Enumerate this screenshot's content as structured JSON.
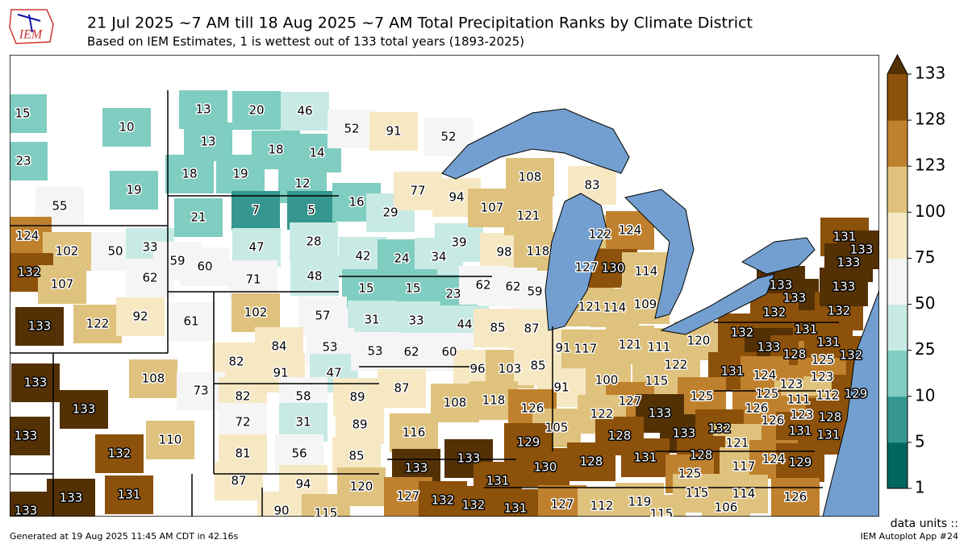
{
  "logo": "IEM",
  "header": {
    "title": "21 Jul 2025 ~7 AM till 18 Aug 2025 ~7 AM Total Precipitation Ranks by Climate District",
    "subtitle": "Based on IEM Estimates, 1 is wettest out of 133 total years (1893-2025)"
  },
  "footer": {
    "generated": "Generated at 19 Aug 2025 11:45 AM CDT in 42.16s",
    "units": "data units ::",
    "app": "IEM Autoplot App #24"
  },
  "colorbar": {
    "ticks": [
      1,
      5,
      10,
      25,
      50,
      75,
      100,
      123,
      128,
      133
    ],
    "colors": [
      "#01665e",
      "#35978f",
      "#80cdc1",
      "#c7eae5",
      "#f5f5f5",
      "#f6e8c3",
      "#dfc27d",
      "#bf812d",
      "#8c510a"
    ],
    "over_color": "#543005"
  },
  "districts": [
    15,
    10,
    23,
    19,
    55,
    13,
    20,
    46,
    13,
    18,
    14,
    18,
    19,
    12,
    52,
    91,
    52,
    21,
    7,
    5,
    16,
    29,
    77,
    94,
    108,
    83,
    124,
    102,
    50,
    33,
    59,
    60,
    62,
    47,
    28,
    132,
    107,
    71,
    48,
    42,
    24,
    34,
    39,
    98,
    118,
    107,
    121,
    122,
    124,
    127,
    130,
    114,
    15,
    15,
    23,
    62,
    62,
    59,
    133,
    122,
    92,
    61,
    102,
    57,
    31,
    33,
    44,
    85,
    87,
    121,
    114,
    109,
    133,
    133,
    132,
    132,
    133,
    131,
    133,
    133,
    120,
    132,
    131,
    133,
    128,
    125,
    132,
    131,
    121,
    111,
    122,
    53,
    84,
    82,
    91,
    47,
    53,
    62,
    60,
    96,
    103,
    85,
    91,
    117,
    108,
    133,
    73,
    100,
    115,
    131,
    124,
    123,
    123,
    87,
    82,
    58,
    89,
    72,
    31,
    89,
    118,
    108,
    91,
    126,
    127,
    125,
    125,
    111,
    112,
    129,
    126,
    126,
    123,
    128,
    131,
    131,
    133,
    133,
    132,
    110,
    116,
    105,
    122,
    133,
    133,
    132,
    129,
    128,
    121,
    81,
    56,
    85,
    133,
    133,
    130,
    128,
    131,
    128,
    125,
    117,
    124,
    129,
    131,
    87,
    94,
    120,
    133,
    133,
    131,
    127,
    132,
    132,
    131,
    127,
    112,
    119,
    115,
    114,
    106,
    126,
    90,
    115,
    115
  ]
}
